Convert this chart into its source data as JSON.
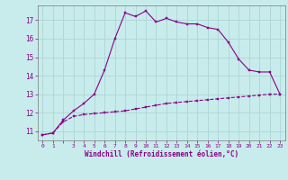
{
  "xlabel": "Windchill (Refroidissement éolien,°C)",
  "background_color": "#c8ecec",
  "grid_color": "#b0d8d8",
  "line_color": "#880088",
  "x_hours": [
    0,
    1,
    2,
    3,
    4,
    5,
    6,
    7,
    8,
    9,
    10,
    11,
    12,
    13,
    14,
    15,
    16,
    17,
    18,
    19,
    20,
    21,
    22,
    23
  ],
  "windchill_values": [
    10.8,
    10.9,
    11.6,
    12.1,
    12.5,
    13.0,
    14.3,
    16.0,
    17.4,
    17.2,
    17.5,
    16.9,
    17.1,
    16.9,
    16.8,
    16.8,
    16.6,
    16.5,
    15.8,
    14.9,
    14.3,
    14.2,
    14.2,
    13.0
  ],
  "temp_values": [
    10.8,
    10.9,
    11.5,
    11.8,
    11.9,
    11.95,
    12.0,
    12.05,
    12.1,
    12.2,
    12.3,
    12.4,
    12.5,
    12.55,
    12.6,
    12.65,
    12.7,
    12.75,
    12.8,
    12.85,
    12.9,
    12.95,
    13.0,
    13.0
  ],
  "ylim": [
    10.5,
    17.8
  ],
  "xlim": [
    -0.5,
    23.5
  ],
  "yticks": [
    11,
    12,
    13,
    14,
    15,
    16,
    17
  ],
  "xtick_labels": [
    "0",
    "1",
    "",
    "3",
    "4",
    "5",
    "6",
    "7",
    "8",
    "9",
    "10",
    "11",
    "12",
    "13",
    "14",
    "15",
    "16",
    "17",
    "18",
    "19",
    "20",
    "21",
    "22",
    "23"
  ]
}
